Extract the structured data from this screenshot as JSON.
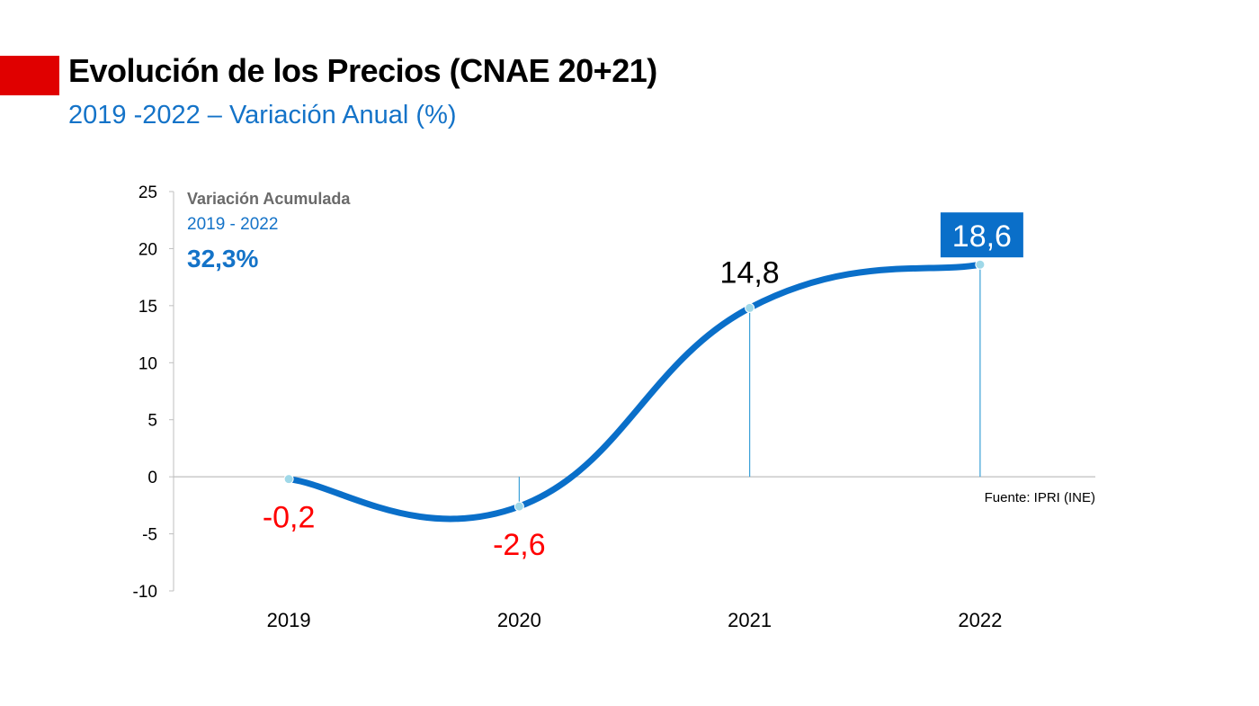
{
  "header": {
    "title": "Evolución de los Precios (CNAE 20+21)",
    "subtitle": "2019 -2022  – Variación Anual (%)",
    "accent_color": "#e00000"
  },
  "inset": {
    "heading": "Variación Acumulada",
    "period": "2019 - 2022",
    "value": "32,3%"
  },
  "source_note": "Fuente: IPRI (INE)",
  "colors": {
    "line": "#0a6fc9",
    "negative_label": "#ff0000",
    "positive_label": "#000000",
    "highlight_box": "#0a6fc9",
    "highlight_text": "#ffffff",
    "marker": "#9fd8e8",
    "drop_line": "#3aa0d8",
    "axis": "#bfbfbf"
  },
  "chart_data": {
    "type": "line",
    "smooth": true,
    "title": "Evolución de los Precios (CNAE 20+21)",
    "subtitle": "2019 -2022  – Variación Anual (%)",
    "categories": [
      "2019",
      "2020",
      "2021",
      "2022"
    ],
    "series": [
      {
        "values": [
          -0.2,
          -2.6,
          14.8,
          18.6
        ],
        "data_labels": [
          "-0,2",
          "-2,6",
          "14,8",
          "18,6"
        ]
      }
    ],
    "highlighted_point": 3,
    "ylim": [
      -10,
      25
    ],
    "yticks": [
      25,
      20,
      15,
      10,
      5,
      0,
      -5,
      -10
    ],
    "ytick_labels": [
      "25",
      "20",
      "15",
      "10",
      "5",
      "0",
      "-5",
      "-10"
    ],
    "xlabel": "",
    "ylabel": "",
    "grid": false,
    "legend": "none"
  }
}
